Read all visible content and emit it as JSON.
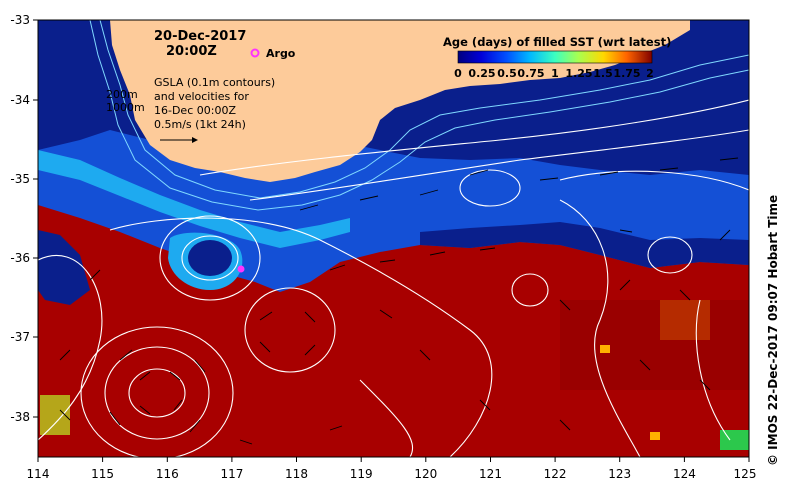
{
  "map": {
    "date_line1": "20-Dec-2017",
    "date_line2": "20:00Z",
    "argo_label": "Argo",
    "depth_label_1": "200m",
    "depth_label_2": "1000m",
    "gsla_lines": [
      "GSLA (0.1m contours)",
      "and velocities for",
      "16-Dec 00:00Z",
      "0.5m/s (1kt 24h)"
    ],
    "credit": "© IMOS 22-Dec-2017 09:07 Hobart Time",
    "lon_ticks": [
      "114",
      "115",
      "116",
      "117",
      "118",
      "119",
      "120",
      "121",
      "122",
      "123",
      "124",
      "125"
    ],
    "lat_ticks": [
      "-33",
      "-34",
      "-35",
      "-36",
      "-37",
      "-38"
    ]
  },
  "legend": {
    "title": "Age (days) of filled SST (wrt latest)",
    "ticks": [
      "0",
      "0.25",
      "0.5",
      "0.75",
      "1",
      "1.25",
      "1.5",
      "1.75",
      "2"
    ],
    "colors": [
      "#00007f",
      "#0000d8",
      "#0050ff",
      "#00b8ff",
      "#3cffc0",
      "#a8ff50",
      "#ffd800",
      "#ff6400",
      "#c80000",
      "#7f0000"
    ]
  },
  "colors": {
    "land": "#fdcb9a",
    "deep_blue": "#0a1f8c",
    "mid_blue": "#1450d6",
    "cyan": "#1eaaf0",
    "red": "#a80000",
    "dark_red": "#8c0000",
    "argo": "#ff33ff"
  }
}
